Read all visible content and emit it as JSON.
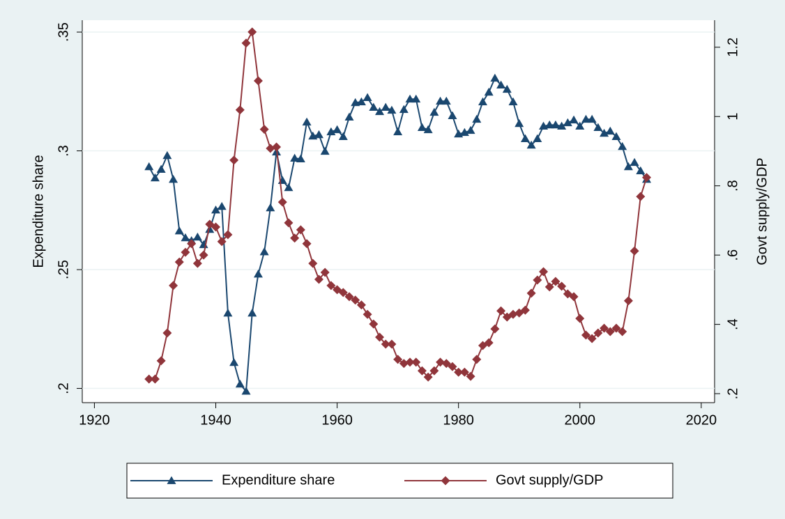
{
  "chart_data": {
    "type": "line",
    "x": [
      1929,
      1930,
      1931,
      1932,
      1933,
      1934,
      1935,
      1936,
      1937,
      1938,
      1939,
      1940,
      1941,
      1942,
      1943,
      1944,
      1945,
      1946,
      1947,
      1948,
      1949,
      1950,
      1951,
      1952,
      1953,
      1954,
      1955,
      1956,
      1957,
      1958,
      1959,
      1960,
      1961,
      1962,
      1963,
      1964,
      1965,
      1966,
      1967,
      1968,
      1969,
      1970,
      1971,
      1972,
      1973,
      1974,
      1975,
      1976,
      1977,
      1978,
      1979,
      1980,
      1981,
      1982,
      1983,
      1984,
      1985,
      1986,
      1987,
      1988,
      1989,
      1990,
      1991,
      1992,
      1993,
      1994,
      1995,
      1996,
      1997,
      1998,
      1999,
      2000,
      2001,
      2002,
      2003,
      2004,
      2005,
      2006,
      2007,
      2008,
      2009,
      2010,
      2011
    ],
    "series": [
      {
        "name": "Expenditure share",
        "color": "#1a476f",
        "marker": "triangle",
        "values": [
          0.2933,
          0.2886,
          0.2922,
          0.298,
          0.288,
          0.2663,
          0.2634,
          0.2622,
          0.2637,
          0.2605,
          0.2669,
          0.2751,
          0.2766,
          0.2317,
          0.2109,
          0.2018,
          0.1988,
          0.2317,
          0.2481,
          0.2575,
          0.276,
          0.2995,
          0.2875,
          0.2845,
          0.2969,
          0.2966,
          0.3121,
          0.3062,
          0.3068,
          0.2998,
          0.308,
          0.3089,
          0.306,
          0.3142,
          0.3203,
          0.3206,
          0.3224,
          0.3183,
          0.3165,
          0.3183,
          0.3171,
          0.308,
          0.3174,
          0.3218,
          0.3218,
          0.3098,
          0.3089,
          0.3162,
          0.3209,
          0.3209,
          0.3148,
          0.3071,
          0.3077,
          0.3086,
          0.3133,
          0.3206,
          0.3247,
          0.3306,
          0.3277,
          0.3259,
          0.3206,
          0.3115,
          0.3051,
          0.3024,
          0.3051,
          0.3104,
          0.3109,
          0.3109,
          0.3104,
          0.3118,
          0.313,
          0.3104,
          0.3133,
          0.3133,
          0.3098,
          0.3074,
          0.3083,
          0.306,
          0.3018,
          0.2933,
          0.2951,
          0.2916,
          0.288
        ]
      },
      {
        "name": "Govt supply/GDP",
        "color": "#90353b",
        "marker": "diamond",
        "axis": "y2",
        "values": [
          0.242,
          0.242,
          0.295,
          0.375,
          0.512,
          0.58,
          0.608,
          0.633,
          0.576,
          0.6,
          0.689,
          0.681,
          0.639,
          0.659,
          0.874,
          1.019,
          1.212,
          1.244,
          1.103,
          0.963,
          0.908,
          0.912,
          0.753,
          0.693,
          0.649,
          0.673,
          0.633,
          0.576,
          0.53,
          0.55,
          0.512,
          0.5,
          0.492,
          0.48,
          0.47,
          0.456,
          0.429,
          0.401,
          0.363,
          0.343,
          0.343,
          0.299,
          0.287,
          0.291,
          0.291,
          0.266,
          0.248,
          0.266,
          0.291,
          0.287,
          0.278,
          0.262,
          0.262,
          0.25,
          0.299,
          0.339,
          0.347,
          0.387,
          0.439,
          0.421,
          0.429,
          0.433,
          0.441,
          0.49,
          0.528,
          0.552,
          0.508,
          0.524,
          0.51,
          0.488,
          0.48,
          0.417,
          0.369,
          0.359,
          0.375,
          0.389,
          0.379,
          0.389,
          0.379,
          0.468,
          0.612,
          0.769,
          0.824
        ]
      }
    ],
    "y_label": "Expenditure share",
    "y2_label": "Govt supply/GDP",
    "xlim": [
      1918,
      2022.2
    ],
    "xticks": [
      1920,
      1940,
      1960,
      1980,
      2000,
      2020
    ],
    "ylim": [
      0.194,
      0.355
    ],
    "yticks": [
      {
        "value": 0.2,
        "label": ".2"
      },
      {
        "value": 0.25,
        "label": ".25"
      },
      {
        "value": 0.3,
        "label": ".3"
      },
      {
        "value": 0.35,
        "label": ".35"
      }
    ],
    "y2lim": [
      0.174,
      1.278
    ],
    "y2ticks": [
      {
        "value": 0.2,
        "label": ".2"
      },
      {
        "value": 0.4,
        "label": ".4"
      },
      {
        "value": 0.6,
        "label": ".6"
      },
      {
        "value": 0.8,
        "label": ".8"
      },
      1,
      1.2
    ],
    "grid": true,
    "legend": "bottom"
  }
}
